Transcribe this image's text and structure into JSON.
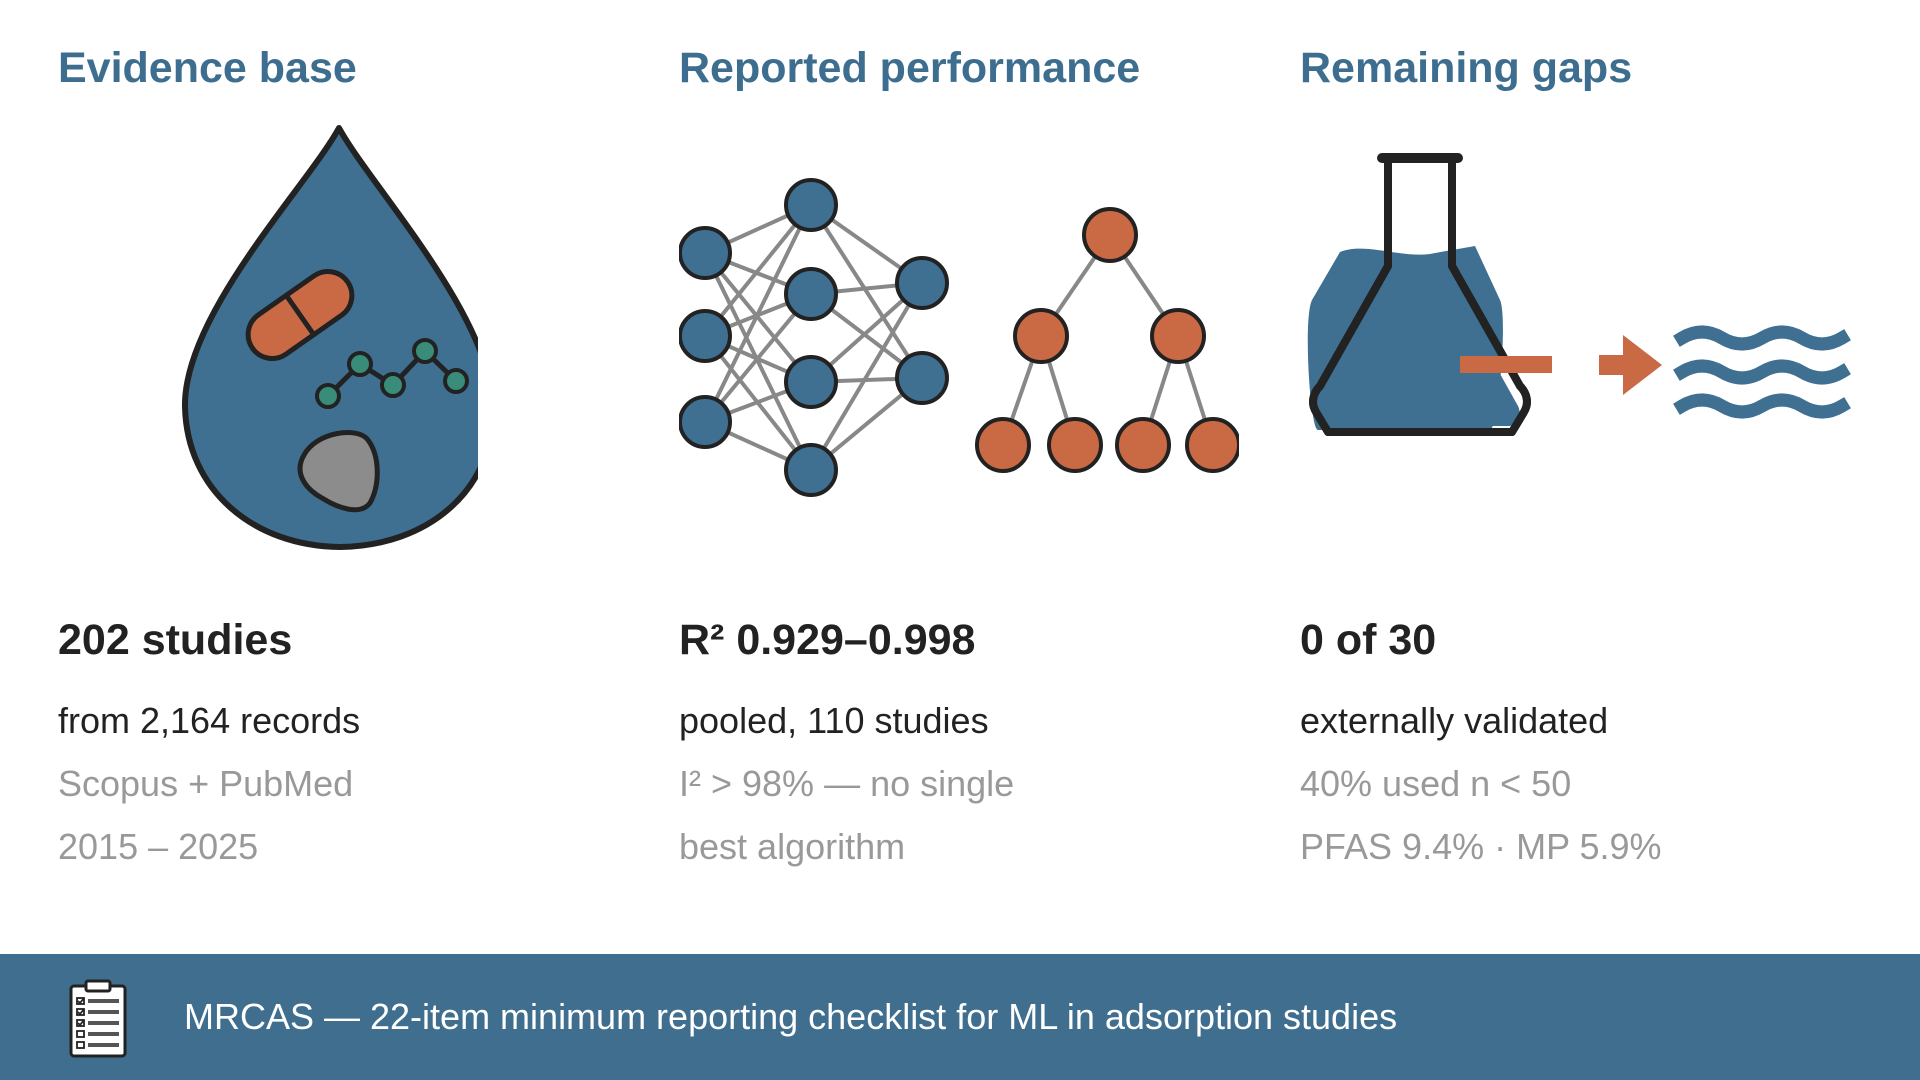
{
  "colors": {
    "title": "#3d6e8f",
    "blue": "#3f7092",
    "orange": "#c96a45",
    "teal": "#3a8c7a",
    "grey": "#8c8c8c",
    "text_dark": "#222222",
    "text_muted": "#999999",
    "footer_bg": "#3f6e8e"
  },
  "columns": [
    {
      "title": "Evidence base",
      "icon": "water-drop-contaminants-icon",
      "headline": "202 studies",
      "line1": "from 2,164 records",
      "line2": "Scopus + PubMed",
      "line3": "2015 – 2025"
    },
    {
      "title": "Reported performance",
      "icon": "neural-network-and-decision-tree-icon",
      "headline": "R² 0.929–0.998",
      "line1": "pooled, 110 studies",
      "line2": "I² > 98% — no single",
      "line3": "best algorithm"
    },
    {
      "title": "Remaining gaps",
      "icon": "flask-to-water-icon",
      "headline": "0 of 30",
      "line1": "externally validated",
      "line2": "40% used n < 50",
      "line3": "PFAS 9.4% · MP 5.9%"
    }
  ],
  "footer": {
    "icon": "clipboard-checklist-icon",
    "text": "MRCAS — 22-item minimum reporting checklist for ML in adsorption studies"
  }
}
